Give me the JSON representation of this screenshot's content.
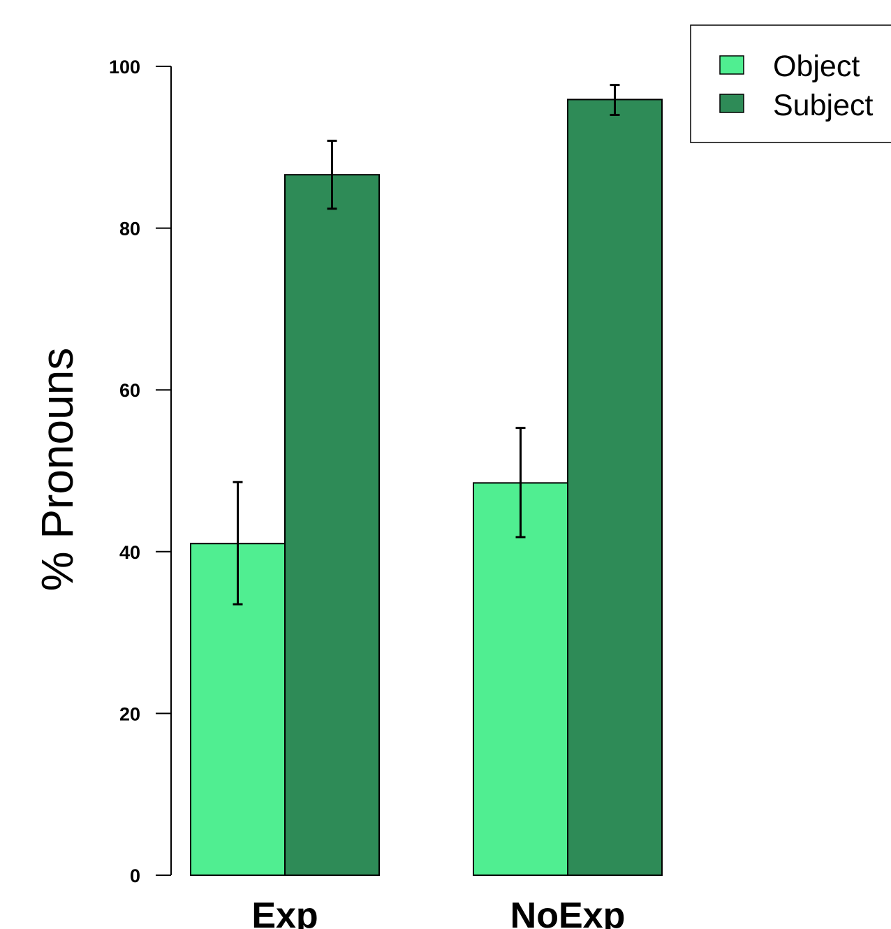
{
  "chart_data": {
    "type": "bar",
    "categories": [
      "Exp",
      "NoExp"
    ],
    "series": [
      {
        "name": "Object",
        "color": "#50ee91",
        "values": [
          41,
          48.5
        ],
        "error_low": [
          33.5,
          41.8
        ],
        "error_high": [
          48.6,
          55.3
        ]
      },
      {
        "name": "Subject",
        "color": "#2e8b57",
        "values": [
          86.6,
          95.9
        ],
        "error_low": [
          82.4,
          94.0
        ],
        "error_high": [
          90.8,
          97.7
        ]
      }
    ],
    "title": "",
    "xlabel": "",
    "ylabel": "% Pronouns",
    "ylim": [
      0,
      100
    ],
    "yticks": [
      "0",
      "20",
      "40",
      "60",
      "80",
      "100"
    ],
    "grid": false,
    "legend_position": "top-right"
  }
}
